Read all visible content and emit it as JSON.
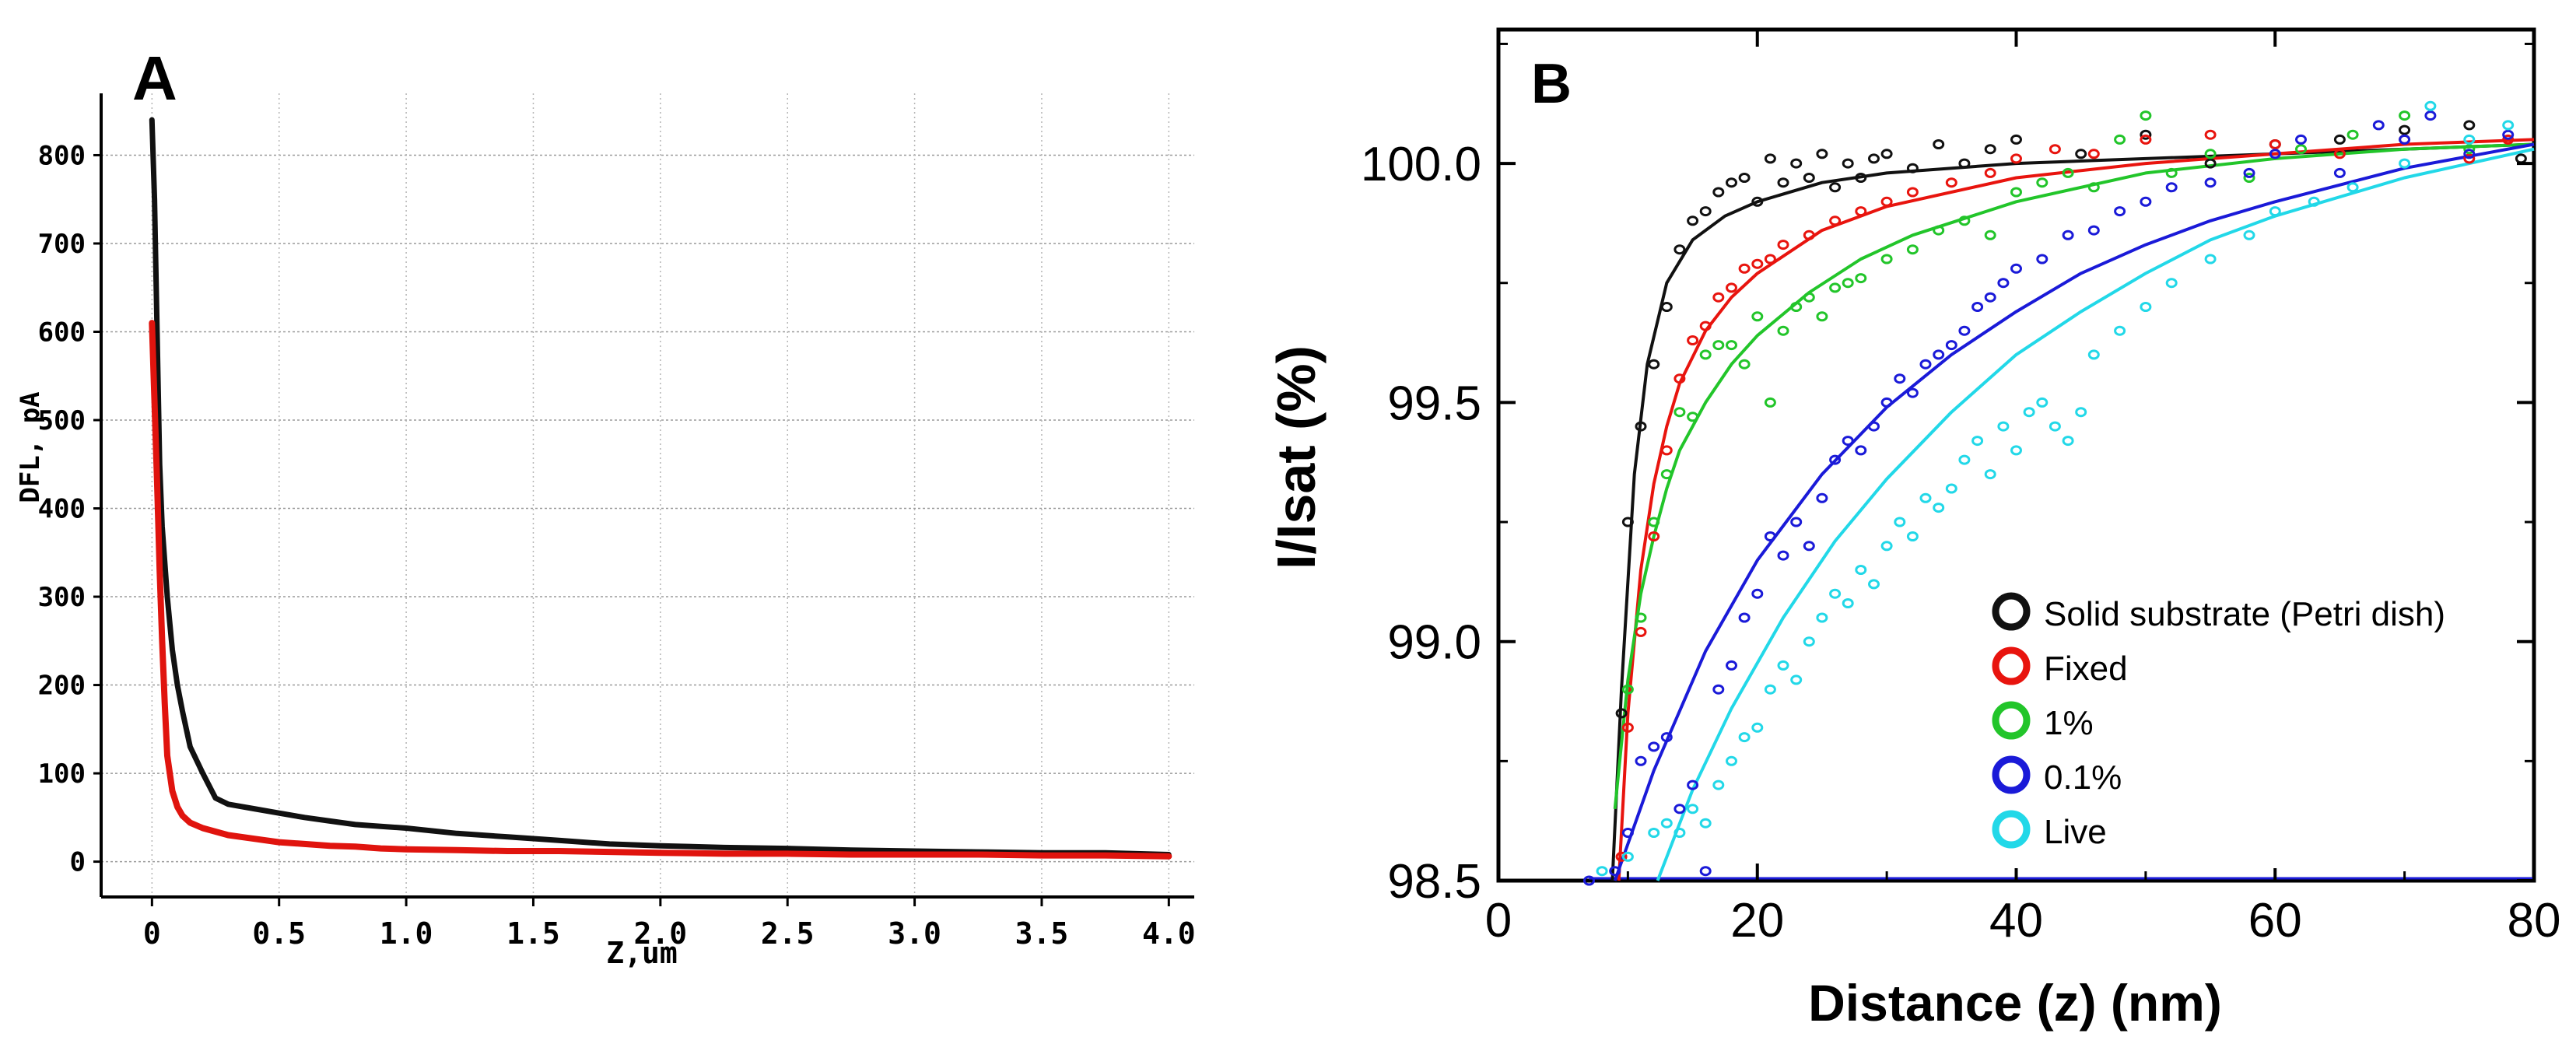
{
  "chart_data": [
    {
      "panel": "A",
      "type": "line",
      "xlabel": "Z,um",
      "ylabel": "DFL, pA",
      "xlim": [
        -0.2,
        4.1
      ],
      "ylim": [
        -40,
        870
      ],
      "xticks": [
        0,
        0.5,
        1.0,
        1.5,
        2.0,
        2.5,
        3.0,
        3.5,
        4.0
      ],
      "xtick_labels": [
        "0",
        "0.5",
        "1.0",
        "1.5",
        "2.0",
        "2.5",
        "3.0",
        "3.5",
        "4.0"
      ],
      "yticks": [
        0,
        100,
        200,
        300,
        400,
        500,
        600,
        700,
        800
      ],
      "ytick_labels": [
        "0",
        "100",
        "200",
        "300",
        "400",
        "500",
        "600",
        "700",
        "800"
      ],
      "series": [
        {
          "name": "black curve",
          "color": "#111111",
          "x": [
            0,
            0.01,
            0.02,
            0.03,
            0.04,
            0.06,
            0.08,
            0.1,
            0.12,
            0.15,
            0.2,
            0.25,
            0.3,
            0.4,
            0.5,
            0.6,
            0.7,
            0.8,
            0.9,
            1.0,
            1.2,
            1.4,
            1.6,
            1.8,
            2.0,
            2.25,
            2.5,
            2.75,
            3.0,
            3.25,
            3.5,
            3.75,
            4.0
          ],
          "y": [
            840,
            750,
            600,
            450,
            380,
            300,
            240,
            200,
            170,
            130,
            100,
            72,
            65,
            60,
            55,
            50,
            46,
            42,
            40,
            38,
            32,
            28,
            24,
            20,
            18,
            16,
            15,
            13,
            12,
            11,
            10,
            10,
            8
          ]
        },
        {
          "name": "red curve",
          "color": "#e0140e",
          "x": [
            0,
            0.01,
            0.02,
            0.03,
            0.04,
            0.05,
            0.06,
            0.08,
            0.1,
            0.12,
            0.15,
            0.2,
            0.25,
            0.3,
            0.4,
            0.5,
            0.6,
            0.7,
            0.8,
            0.9,
            1.0,
            1.2,
            1.4,
            1.6,
            1.8,
            2.0,
            2.25,
            2.5,
            2.75,
            3.0,
            3.25,
            3.5,
            3.75,
            4.0
          ],
          "y": [
            610,
            520,
            430,
            330,
            250,
            180,
            120,
            80,
            62,
            52,
            44,
            38,
            34,
            30,
            26,
            22,
            20,
            18,
            17,
            15,
            14,
            13,
            12,
            12,
            11,
            10,
            9,
            9,
            8,
            8,
            8,
            7,
            7,
            6
          ]
        }
      ]
    },
    {
      "panel": "B",
      "type": "scatter",
      "xlabel": "Distance (z) (nm)",
      "ylabel": "I/Isat (%)",
      "xlim": [
        0,
        80
      ],
      "ylim": [
        98.5,
        100.28
      ],
      "xticks": [
        0,
        20,
        40,
        60,
        80
      ],
      "xtick_labels": [
        "0",
        "20",
        "40",
        "60",
        "80"
      ],
      "yticks": [
        98.5,
        99.0,
        99.5,
        100.0
      ],
      "ytick_labels": [
        "98.5",
        "99.0",
        "99.5",
        "100.0"
      ],
      "legend_position": "lower-right",
      "series": [
        {
          "name": "Solid substrate (Petri dish)",
          "color": "#111111",
          "fit_x": [
            8.8,
            9.5,
            10.5,
            11.5,
            13,
            15,
            17.5,
            20,
            25,
            30,
            40,
            50,
            60,
            70,
            80
          ],
          "fit_y": [
            98.5,
            98.9,
            99.35,
            99.58,
            99.75,
            99.84,
            99.89,
            99.92,
            99.96,
            99.98,
            100.0,
            100.01,
            100.02,
            100.03,
            100.04
          ],
          "points_x": [
            9.5,
            10,
            11,
            12,
            13,
            14,
            15,
            16,
            17,
            18,
            19,
            20,
            21,
            22,
            23,
            24,
            25,
            26,
            27,
            28,
            29,
            30,
            32,
            34,
            36,
            38,
            40,
            45,
            50,
            55,
            60,
            65,
            70,
            75,
            79
          ],
          "points_y": [
            98.85,
            99.25,
            99.45,
            99.58,
            99.7,
            99.82,
            99.88,
            99.9,
            99.94,
            99.96,
            99.97,
            99.92,
            100.01,
            99.96,
            100.0,
            99.97,
            100.02,
            99.95,
            100.0,
            99.97,
            100.01,
            100.02,
            99.99,
            100.04,
            100.0,
            100.03,
            100.05,
            100.02,
            100.06,
            100.0,
            100.04,
            100.05,
            100.07,
            100.08,
            100.01
          ]
        },
        {
          "name": "Fixed",
          "color": "#e8140e",
          "fit_x": [
            9.3,
            10,
            11,
            12,
            13,
            14,
            16,
            18,
            20,
            25,
            30,
            40,
            50,
            60,
            70,
            80
          ],
          "fit_y": [
            98.5,
            98.85,
            99.15,
            99.33,
            99.45,
            99.54,
            99.65,
            99.72,
            99.77,
            99.86,
            99.91,
            99.97,
            100.0,
            100.02,
            100.04,
            100.05
          ],
          "points_x": [
            9.5,
            10,
            11,
            12,
            13,
            14,
            15,
            16,
            17,
            18,
            19,
            20,
            21,
            22,
            24,
            26,
            28,
            30,
            32,
            35,
            38,
            40,
            43,
            46,
            50,
            55,
            60,
            65,
            70,
            75,
            78
          ],
          "points_y": [
            98.55,
            98.82,
            99.02,
            99.22,
            99.4,
            99.55,
            99.63,
            99.66,
            99.72,
            99.74,
            99.78,
            99.79,
            99.8,
            99.83,
            99.85,
            99.88,
            99.9,
            99.92,
            99.94,
            99.96,
            99.98,
            100.01,
            100.03,
            100.02,
            100.05,
            100.06,
            100.04,
            100.02,
            100.05,
            100.01,
            100.05
          ]
        },
        {
          "name": "1%",
          "color": "#22c52a",
          "fit_x": [
            9,
            10,
            11,
            12,
            13,
            14,
            16,
            18,
            20,
            24,
            28,
            32,
            40,
            50,
            60,
            70,
            80
          ],
          "fit_y": [
            98.65,
            98.92,
            99.1,
            99.22,
            99.32,
            99.4,
            99.5,
            99.58,
            99.64,
            99.73,
            99.8,
            99.85,
            99.92,
            99.98,
            100.01,
            100.03,
            100.04
          ],
          "points_x": [
            10,
            11,
            12,
            13,
            14,
            15,
            16,
            17,
            18,
            19,
            20,
            21,
            22,
            23,
            24,
            25,
            26,
            27,
            28,
            30,
            32,
            34,
            36,
            38,
            40,
            42,
            44,
            46,
            48,
            50,
            52,
            55,
            58,
            62,
            66,
            70,
            75
          ],
          "points_y": [
            98.9,
            99.05,
            99.25,
            99.35,
            99.48,
            99.47,
            99.6,
            99.62,
            99.62,
            99.58,
            99.68,
            99.5,
            99.65,
            99.7,
            99.72,
            99.68,
            99.74,
            99.75,
            99.76,
            99.8,
            99.82,
            99.86,
            99.88,
            99.85,
            99.94,
            99.96,
            99.98,
            99.95,
            100.05,
            100.1,
            99.98,
            100.02,
            99.97,
            100.03,
            100.06,
            100.1,
            100.03
          ]
        },
        {
          "name": "0.1%",
          "color": "#1a1ad8",
          "fit_x": [
            9,
            12,
            16,
            20,
            25,
            30,
            35,
            40,
            45,
            50,
            55,
            60,
            70,
            80
          ],
          "fit_y": [
            98.5,
            98.73,
            98.98,
            99.17,
            99.35,
            99.49,
            99.6,
            99.69,
            99.77,
            99.83,
            99.88,
            99.92,
            99.99,
            100.04
          ],
          "points_x": [
            7,
            9,
            10,
            11,
            12,
            13,
            14,
            15,
            16,
            17,
            18,
            19,
            20,
            21,
            22,
            23,
            24,
            25,
            26,
            27,
            28,
            29,
            30,
            31,
            32,
            33,
            34,
            35,
            36,
            37,
            38,
            39,
            40,
            42,
            44,
            46,
            48,
            50,
            52,
            55,
            58,
            60,
            62,
            65,
            68,
            70,
            72,
            75,
            78
          ],
          "points_y": [
            98.5,
            98.52,
            98.6,
            98.75,
            98.78,
            98.8,
            98.65,
            98.7,
            98.52,
            98.9,
            98.95,
            99.05,
            99.1,
            99.22,
            99.18,
            99.25,
            99.2,
            99.3,
            99.38,
            99.42,
            99.4,
            99.45,
            99.5,
            99.55,
            99.52,
            99.58,
            99.6,
            99.62,
            99.65,
            99.7,
            99.72,
            99.75,
            99.78,
            99.8,
            99.85,
            99.86,
            99.9,
            99.92,
            99.95,
            99.96,
            99.98,
            100.02,
            100.05,
            99.98,
            100.08,
            100.05,
            100.1,
            100.02,
            100.06
          ]
        },
        {
          "name": "Live",
          "color": "#22d8e8",
          "fit_x": [
            12.3,
            15,
            18,
            22,
            26,
            30,
            35,
            40,
            45,
            50,
            55,
            60,
            70,
            80
          ],
          "fit_y": [
            98.5,
            98.69,
            98.86,
            99.05,
            99.21,
            99.34,
            99.48,
            99.6,
            99.69,
            99.77,
            99.84,
            99.89,
            99.97,
            100.03
          ],
          "points_x": [
            8,
            10,
            12,
            13,
            14,
            15,
            16,
            17,
            18,
            19,
            20,
            21,
            22,
            23,
            24,
            25,
            26,
            27,
            28,
            29,
            30,
            31,
            32,
            33,
            34,
            35,
            36,
            37,
            38,
            39,
            40,
            41,
            42,
            43,
            44,
            45,
            46,
            48,
            50,
            52,
            55,
            58,
            60,
            63,
            66,
            70,
            72,
            75,
            78
          ],
          "points_y": [
            98.52,
            98.55,
            98.6,
            98.62,
            98.6,
            98.65,
            98.62,
            98.7,
            98.75,
            98.8,
            98.82,
            98.9,
            98.95,
            98.92,
            99.0,
            99.05,
            99.1,
            99.08,
            99.15,
            99.12,
            99.2,
            99.25,
            99.22,
            99.3,
            99.28,
            99.32,
            99.38,
            99.42,
            99.35,
            99.45,
            99.4,
            99.48,
            99.5,
            99.45,
            99.42,
            99.48,
            99.6,
            99.65,
            99.7,
            99.75,
            99.8,
            99.85,
            99.9,
            99.92,
            99.95,
            100.0,
            100.12,
            100.05,
            100.08
          ]
        }
      ]
    }
  ],
  "panels": {
    "A": {
      "label": "A"
    },
    "B": {
      "label": "B"
    }
  }
}
